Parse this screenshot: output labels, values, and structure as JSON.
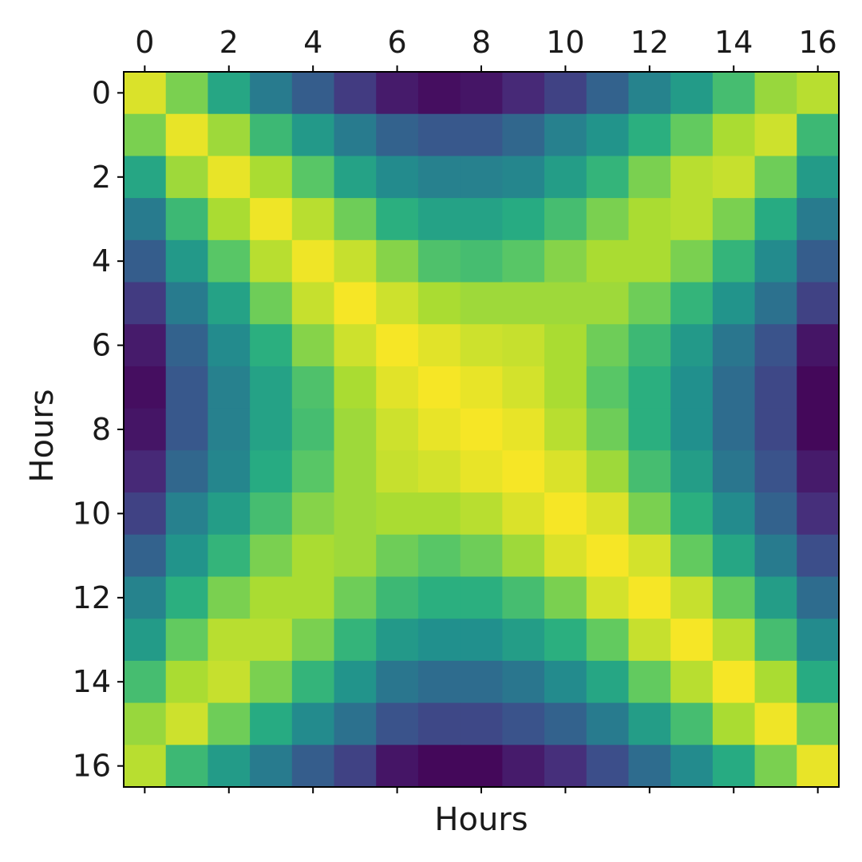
{
  "chart_data": {
    "type": "heatmap",
    "title": "",
    "xlabel": "Hours",
    "ylabel": "Hours",
    "x_ticks": [
      "0",
      "2",
      "4",
      "6",
      "8",
      "10",
      "12",
      "14",
      "16"
    ],
    "y_ticks": [
      "0",
      "2",
      "4",
      "6",
      "8",
      "10",
      "12",
      "14",
      "16"
    ],
    "x_tick_position": "top",
    "colormap": "viridis",
    "vmin": 0.0,
    "vmax": 1.0,
    "grid": false,
    "legend": "none",
    "matrix": [
      [
        0.95,
        0.8,
        0.6,
        0.42,
        0.3,
        0.18,
        0.08,
        0.04,
        0.06,
        0.12,
        0.2,
        0.32,
        0.45,
        0.55,
        0.7,
        0.85,
        0.9
      ],
      [
        0.8,
        0.97,
        0.86,
        0.68,
        0.54,
        0.42,
        0.32,
        0.28,
        0.28,
        0.34,
        0.44,
        0.52,
        0.64,
        0.76,
        0.88,
        0.93,
        0.68
      ],
      [
        0.6,
        0.86,
        0.97,
        0.88,
        0.74,
        0.58,
        0.48,
        0.44,
        0.44,
        0.46,
        0.56,
        0.66,
        0.8,
        0.9,
        0.92,
        0.78,
        0.55
      ],
      [
        0.42,
        0.68,
        0.88,
        0.98,
        0.9,
        0.78,
        0.64,
        0.58,
        0.58,
        0.62,
        0.7,
        0.8,
        0.88,
        0.9,
        0.8,
        0.62,
        0.42
      ],
      [
        0.3,
        0.54,
        0.74,
        0.9,
        0.98,
        0.92,
        0.82,
        0.72,
        0.7,
        0.74,
        0.82,
        0.88,
        0.88,
        0.8,
        0.66,
        0.48,
        0.3
      ],
      [
        0.18,
        0.42,
        0.58,
        0.78,
        0.92,
        0.99,
        0.93,
        0.88,
        0.86,
        0.86,
        0.86,
        0.86,
        0.78,
        0.66,
        0.52,
        0.38,
        0.2
      ],
      [
        0.08,
        0.32,
        0.48,
        0.64,
        0.82,
        0.93,
        0.99,
        0.96,
        0.93,
        0.92,
        0.88,
        0.78,
        0.68,
        0.54,
        0.4,
        0.26,
        0.06
      ],
      [
        0.04,
        0.28,
        0.44,
        0.58,
        0.72,
        0.88,
        0.96,
        0.99,
        0.97,
        0.94,
        0.88,
        0.74,
        0.64,
        0.5,
        0.36,
        0.22,
        0.02
      ],
      [
        0.06,
        0.28,
        0.44,
        0.58,
        0.7,
        0.86,
        0.93,
        0.97,
        0.99,
        0.97,
        0.9,
        0.78,
        0.64,
        0.5,
        0.36,
        0.22,
        0.02
      ],
      [
        0.12,
        0.34,
        0.46,
        0.62,
        0.74,
        0.86,
        0.92,
        0.94,
        0.97,
        0.99,
        0.95,
        0.86,
        0.7,
        0.56,
        0.4,
        0.26,
        0.08
      ],
      [
        0.2,
        0.44,
        0.56,
        0.7,
        0.82,
        0.86,
        0.88,
        0.88,
        0.9,
        0.95,
        0.99,
        0.95,
        0.8,
        0.64,
        0.48,
        0.32,
        0.14
      ],
      [
        0.32,
        0.52,
        0.66,
        0.8,
        0.88,
        0.86,
        0.78,
        0.74,
        0.78,
        0.86,
        0.95,
        0.99,
        0.94,
        0.76,
        0.6,
        0.42,
        0.24
      ],
      [
        0.45,
        0.64,
        0.8,
        0.88,
        0.88,
        0.78,
        0.68,
        0.64,
        0.64,
        0.7,
        0.8,
        0.94,
        0.99,
        0.92,
        0.76,
        0.56,
        0.36
      ],
      [
        0.55,
        0.76,
        0.9,
        0.9,
        0.8,
        0.66,
        0.54,
        0.5,
        0.5,
        0.56,
        0.64,
        0.76,
        0.92,
        0.99,
        0.9,
        0.7,
        0.48
      ],
      [
        0.7,
        0.88,
        0.92,
        0.8,
        0.66,
        0.52,
        0.4,
        0.36,
        0.36,
        0.4,
        0.48,
        0.6,
        0.76,
        0.9,
        0.99,
        0.88,
        0.62
      ],
      [
        0.85,
        0.93,
        0.78,
        0.62,
        0.48,
        0.38,
        0.26,
        0.22,
        0.22,
        0.26,
        0.32,
        0.42,
        0.56,
        0.7,
        0.88,
        0.98,
        0.8
      ],
      [
        0.9,
        0.68,
        0.55,
        0.42,
        0.3,
        0.2,
        0.06,
        0.02,
        0.02,
        0.08,
        0.14,
        0.24,
        0.36,
        0.48,
        0.62,
        0.8,
        0.97
      ]
    ]
  }
}
